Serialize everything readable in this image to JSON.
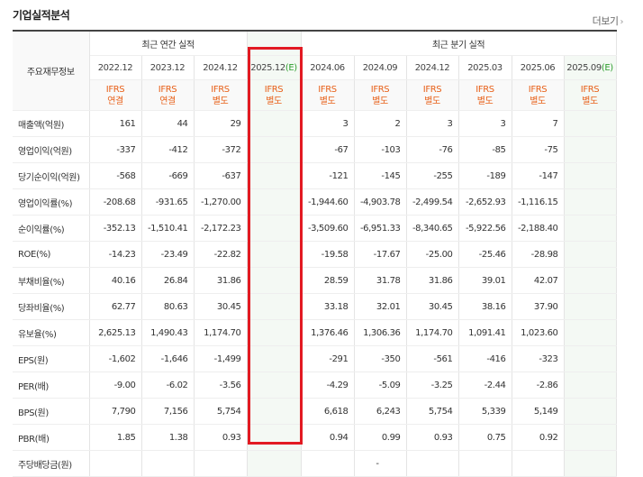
{
  "header": {
    "title": "기업실적분석",
    "more_label": "더보기",
    "more_icon": "chevron-right-icon"
  },
  "table": {
    "row_header_label": "주요재무정보",
    "group_annual": "최근 연간 실적",
    "group_quarter": "최근 분기 실적",
    "periods": [
      "2022.12",
      "2023.12",
      "2024.12",
      "2025.12(E)",
      "2024.06",
      "2024.09",
      "2024.12",
      "2025.03",
      "2025.06",
      "2025.09(E)"
    ],
    "period_base": [
      "2022.12",
      "2023.12",
      "2024.12",
      "2025.12",
      "2024.06",
      "2024.09",
      "2024.12",
      "2025.03",
      "2025.06",
      "2025.09"
    ],
    "period_est": [
      "",
      "",
      "",
      "(E)",
      "",
      "",
      "",
      "",
      "",
      "(E)"
    ],
    "basis_line1": [
      "IFRS",
      "IFRS",
      "IFRS",
      "IFRS",
      "IFRS",
      "IFRS",
      "IFRS",
      "IFRS",
      "IFRS",
      "IFRS"
    ],
    "basis_line2": [
      "연결",
      "연결",
      "별도",
      "별도",
      "별도",
      "별도",
      "별도",
      "별도",
      "별도",
      "별도"
    ],
    "rows": [
      {
        "label": "매출액(억원)",
        "values": [
          "161",
          "44",
          "29",
          "",
          "3",
          "2",
          "3",
          "3",
          "7",
          ""
        ]
      },
      {
        "label": "영업이익(억원)",
        "values": [
          "-337",
          "-412",
          "-372",
          "",
          "-67",
          "-103",
          "-76",
          "-85",
          "-75",
          ""
        ]
      },
      {
        "label": "당기순이익(억원)",
        "values": [
          "-568",
          "-669",
          "-637",
          "",
          "-121",
          "-145",
          "-255",
          "-189",
          "-147",
          ""
        ]
      },
      {
        "label": "영업이익률(%)",
        "values": [
          "-208.68",
          "-931.65",
          "-1,270.00",
          "",
          "-1,944.60",
          "-4,903.78",
          "-2,499.54",
          "-2,652.93",
          "-1,116.15",
          ""
        ]
      },
      {
        "label": "순이익률(%)",
        "values": [
          "-352.13",
          "-1,510.41",
          "-2,172.23",
          "",
          "-3,509.60",
          "-6,951.33",
          "-8,340.65",
          "-5,922.56",
          "-2,188.40",
          ""
        ]
      },
      {
        "label": "ROE(%)",
        "values": [
          "-14.23",
          "-23.49",
          "-22.82",
          "",
          "-19.58",
          "-17.67",
          "-25.00",
          "-25.46",
          "-28.98",
          ""
        ]
      },
      {
        "label": "부채비율(%)",
        "values": [
          "40.16",
          "26.84",
          "31.86",
          "",
          "28.59",
          "31.78",
          "31.86",
          "39.01",
          "42.07",
          ""
        ]
      },
      {
        "label": "당좌비율(%)",
        "values": [
          "62.77",
          "80.63",
          "30.45",
          "",
          "33.18",
          "32.01",
          "30.45",
          "38.16",
          "37.90",
          ""
        ]
      },
      {
        "label": "유보율(%)",
        "values": [
          "2,625.13",
          "1,490.43",
          "1,174.70",
          "",
          "1,376.46",
          "1,306.36",
          "1,174.70",
          "1,091.41",
          "1,023.60",
          ""
        ]
      },
      {
        "label": "EPS(원)",
        "values": [
          "-1,602",
          "-1,646",
          "-1,499",
          "",
          "-291",
          "-350",
          "-561",
          "-416",
          "-323",
          ""
        ]
      },
      {
        "label": "PER(배)",
        "values": [
          "-9.00",
          "-6.02",
          "-3.56",
          "",
          "-4.29",
          "-5.09",
          "-3.25",
          "-2.44",
          "-2.86",
          ""
        ]
      },
      {
        "label": "BPS(원)",
        "values": [
          "7,790",
          "7,156",
          "5,754",
          "",
          "6,618",
          "6,243",
          "5,754",
          "5,339",
          "5,149",
          ""
        ]
      },
      {
        "label": "PBR(배)",
        "values": [
          "1.85",
          "1.38",
          "0.93",
          "",
          "0.94",
          "0.99",
          "0.93",
          "0.75",
          "0.92",
          ""
        ]
      },
      {
        "label": "주당배당금(원)",
        "values": [
          "",
          "",
          "",
          "",
          "",
          "-",
          "",
          "",
          "",
          ""
        ]
      }
    ]
  },
  "colors": {
    "negative": "#e02020",
    "basis": "#e8611a",
    "estimate": "#2e9e2e",
    "highlight_box": "#e21a22"
  },
  "highlight": {
    "column": "2025.12(E)"
  }
}
